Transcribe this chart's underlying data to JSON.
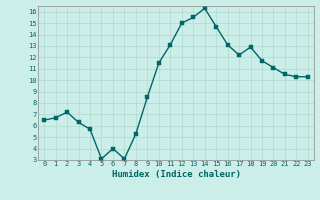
{
  "x": [
    0,
    1,
    2,
    3,
    4,
    5,
    6,
    7,
    8,
    9,
    10,
    11,
    12,
    13,
    14,
    15,
    16,
    17,
    18,
    19,
    20,
    21,
    22,
    23
  ],
  "y": [
    6.5,
    6.7,
    7.2,
    6.3,
    5.7,
    3.1,
    4.0,
    3.1,
    5.3,
    8.5,
    11.5,
    13.1,
    15.0,
    15.5,
    16.3,
    14.7,
    13.1,
    12.2,
    12.9,
    11.7,
    11.1,
    10.5,
    10.3,
    10.3
  ],
  "xlabel": "Humidex (Indice chaleur)",
  "line_color": "#006666",
  "marker_color": "#006666",
  "bg_color": "#cceee8",
  "grid_color": "#b0d8d0",
  "ylim": [
    3,
    16.5
  ],
  "xlim": [
    -0.5,
    23.5
  ],
  "yticks": [
    3,
    4,
    5,
    6,
    7,
    8,
    9,
    10,
    11,
    12,
    13,
    14,
    15,
    16
  ],
  "xticks": [
    0,
    1,
    2,
    3,
    4,
    5,
    6,
    7,
    8,
    9,
    10,
    11,
    12,
    13,
    14,
    15,
    16,
    17,
    18,
    19,
    20,
    21,
    22,
    23
  ],
  "xtick_labels": [
    "0",
    "1",
    "2",
    "3",
    "4",
    "5",
    "6",
    "7",
    "8",
    "9",
    "10",
    "11",
    "12",
    "13",
    "14",
    "15",
    "16",
    "17",
    "18",
    "19",
    "20",
    "21",
    "22",
    "23"
  ],
  "tick_fontsize": 5.0,
  "xlabel_fontsize": 6.5,
  "linewidth": 1.0,
  "markersize": 2.2
}
